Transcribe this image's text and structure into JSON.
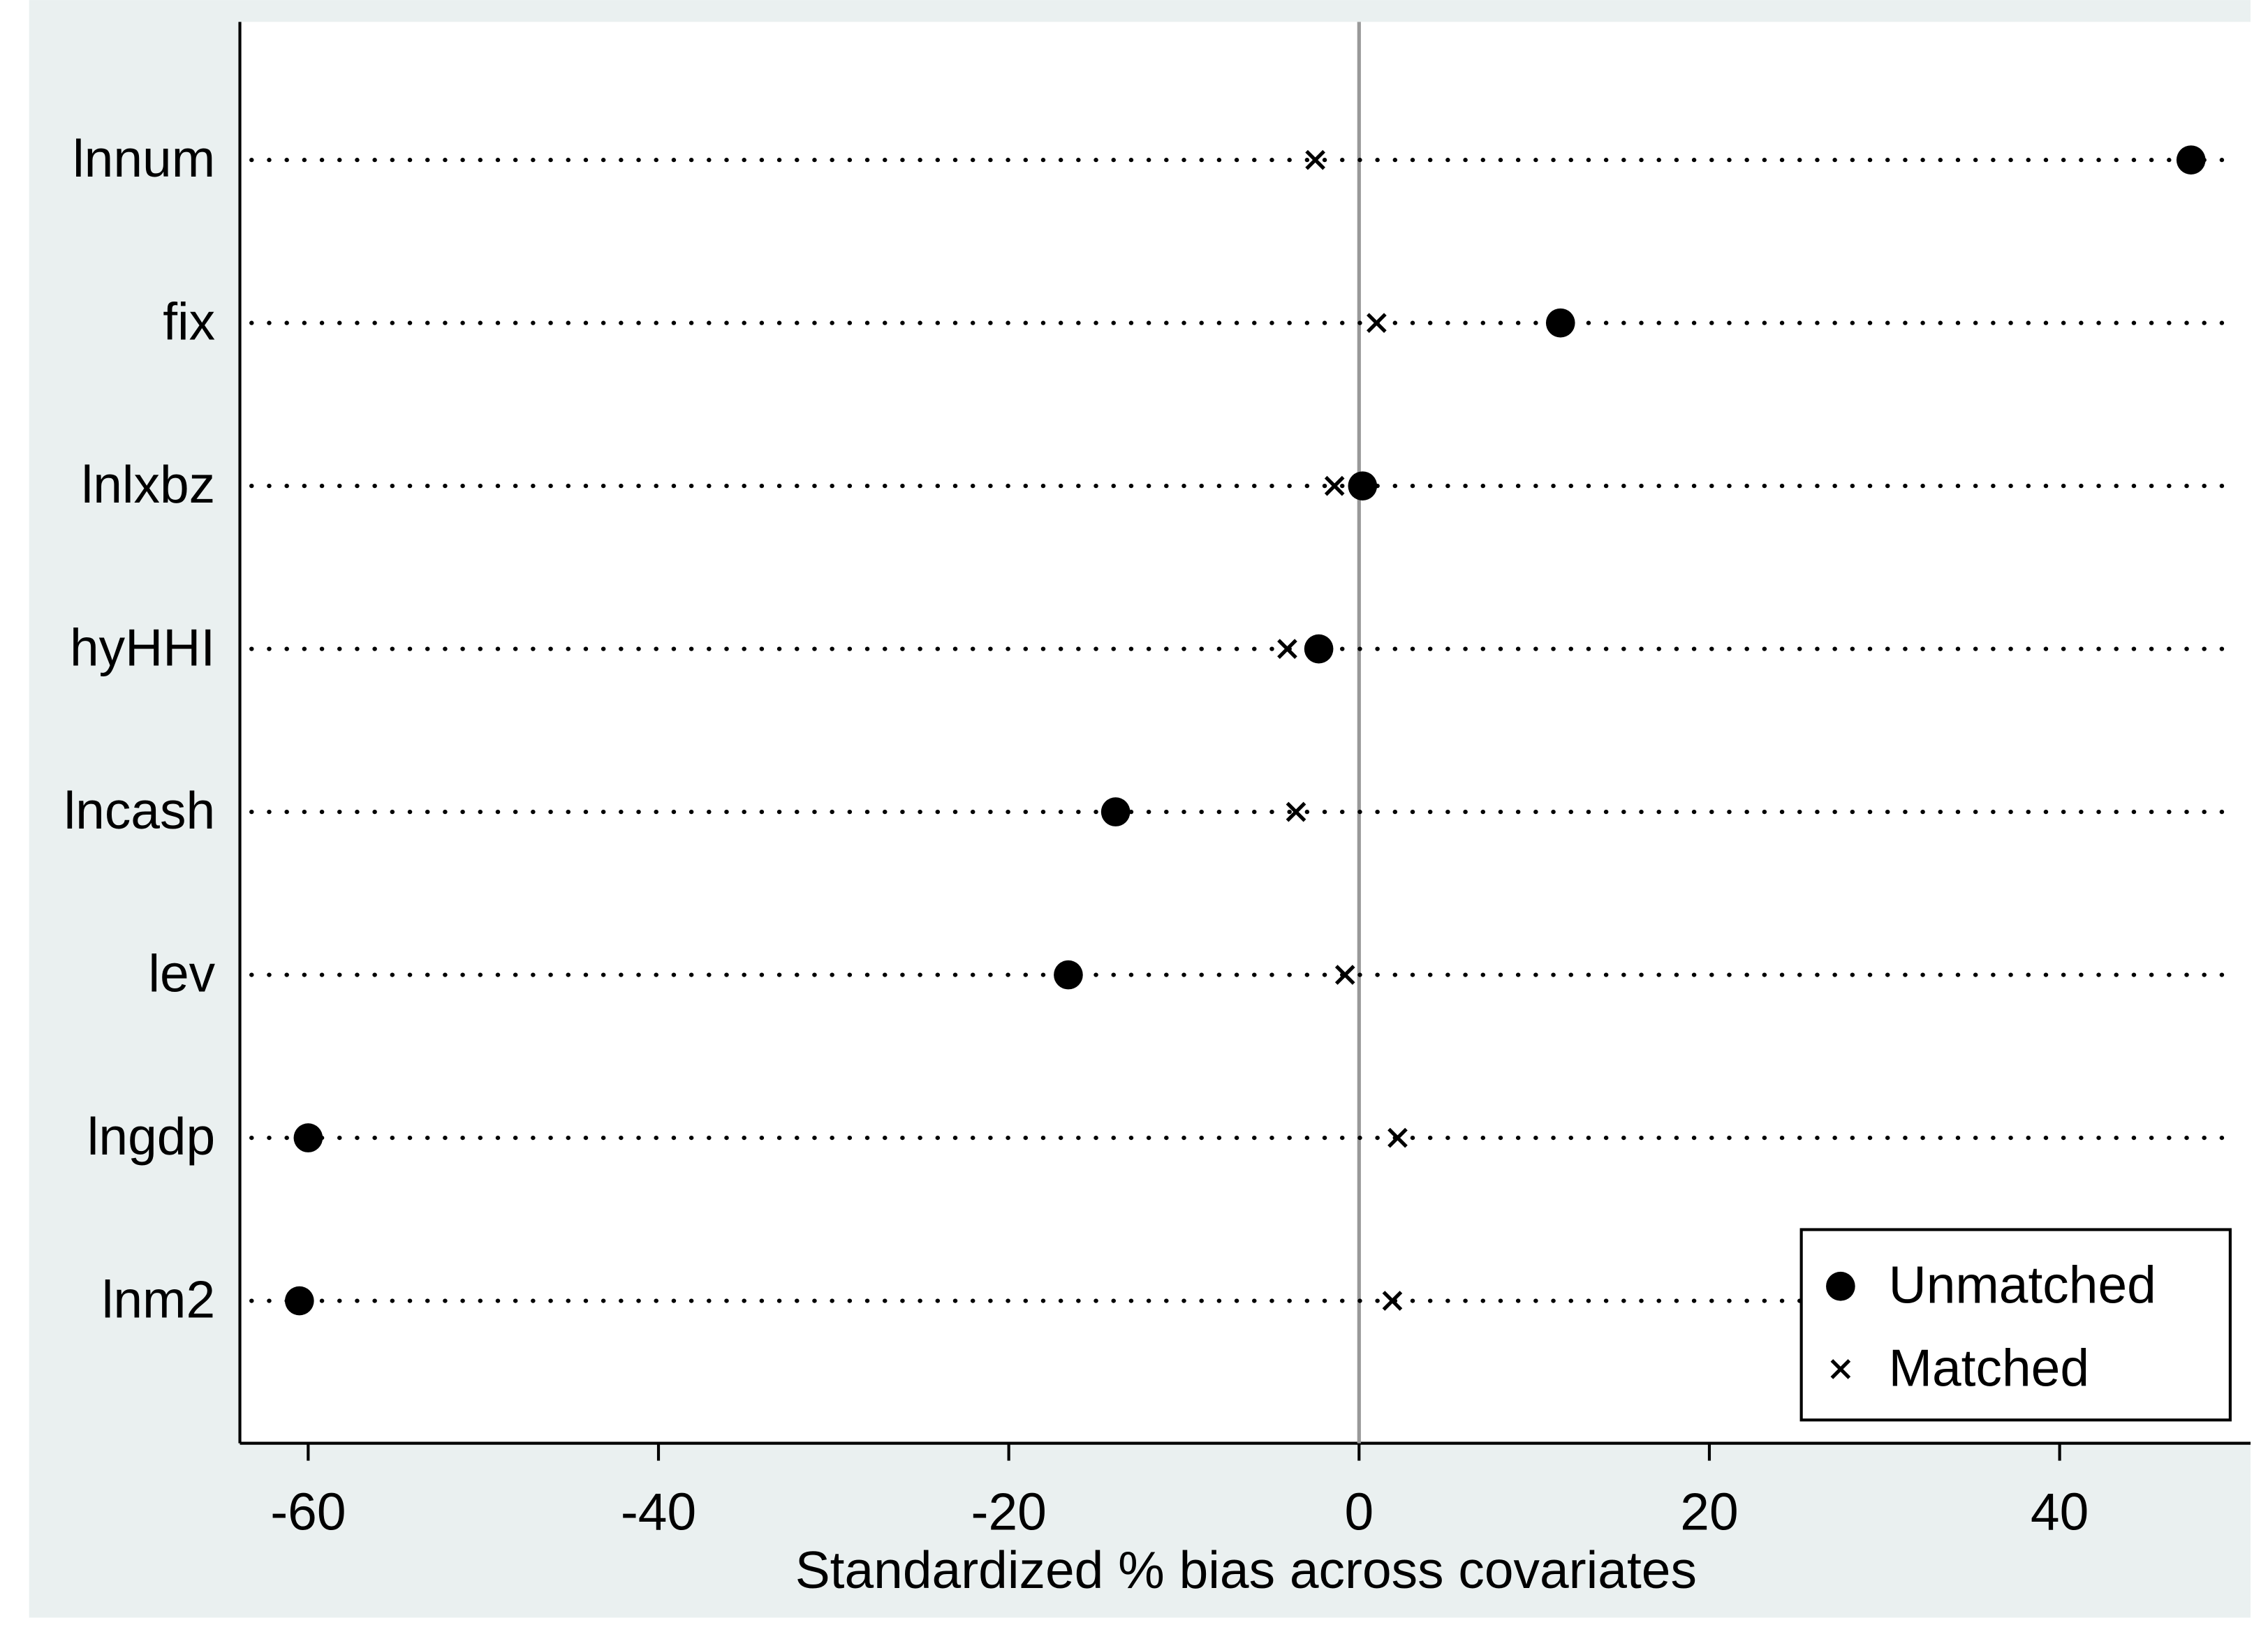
{
  "chart_data": {
    "type": "dot",
    "xlabel": "Standardized % bias across covariates",
    "categories": [
      "lnnum",
      "fix",
      "lnlxbz",
      "hyHHI",
      "lncash",
      "lev",
      "lngdp",
      "lnm2"
    ],
    "series": [
      {
        "name": "Unmatched",
        "color": "#000000",
        "marker": "circle",
        "values": [
          47.5,
          11.5,
          0.2,
          -2.3,
          -13.9,
          -16.6,
          -60.0,
          -60.5
        ]
      },
      {
        "name": "Matched",
        "color": "#000000",
        "marker": "x",
        "values": [
          -2.5,
          1.0,
          -1.4,
          -4.1,
          -3.6,
          -0.8,
          2.2,
          1.9
        ]
      }
    ],
    "xlim": [
      -63.9,
      50.9
    ],
    "xticks": [
      -60,
      -40,
      -20,
      0,
      20,
      40
    ],
    "xline": 0,
    "legend": "bottom-right"
  }
}
